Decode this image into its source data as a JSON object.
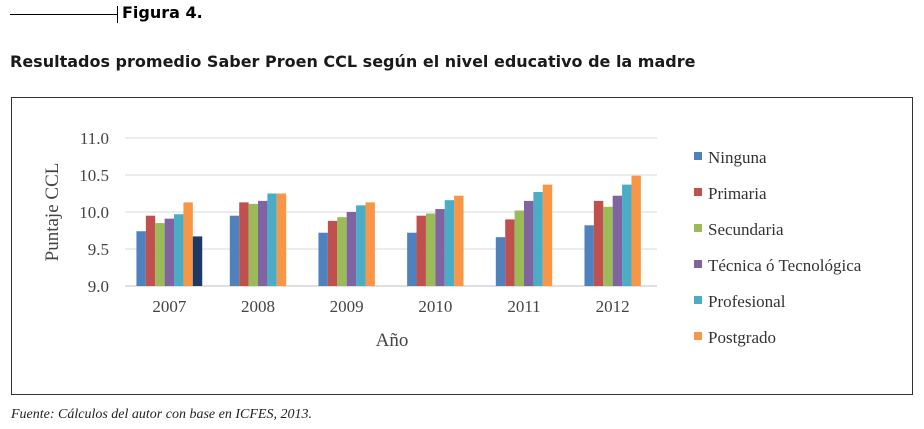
{
  "header": {
    "figure_label": "Figura 4.",
    "title": "Resultados promedio Saber Proen CCL según el nivel educativo de la madre"
  },
  "footer": {
    "source": "Fuente: Cálculos del autor con base en ICFES, 2013."
  },
  "chart_data": {
    "type": "bar",
    "title": "",
    "xlabel": "Año",
    "ylabel": "Puntaje CCL",
    "ylim": [
      9.0,
      11.0
    ],
    "yticks": [
      "9.0",
      "9.5",
      "10.0",
      "10.5",
      "11.0"
    ],
    "grid": "horizontal",
    "legend_position": "right",
    "categories": [
      "2007",
      "2008",
      "2009",
      "2010",
      "2011",
      "2012"
    ],
    "series": [
      {
        "name": "Ninguna",
        "color": "#4f81bd",
        "values": [
          9.74,
          9.95,
          9.72,
          9.72,
          9.66,
          9.82
        ]
      },
      {
        "name": "Primaria",
        "color": "#c0504d",
        "values": [
          9.95,
          10.13,
          9.88,
          9.95,
          9.9,
          10.15
        ]
      },
      {
        "name": "Secundaria",
        "color": "#9bbb59",
        "values": [
          9.85,
          10.11,
          9.93,
          9.98,
          10.02,
          10.07
        ]
      },
      {
        "name": "Técnica ó Tecnológica",
        "color": "#8064a2",
        "values": [
          9.91,
          10.15,
          10.0,
          10.04,
          10.15,
          10.22
        ]
      },
      {
        "name": "Profesional",
        "color": "#4bacc6",
        "values": [
          9.97,
          10.25,
          10.09,
          10.16,
          10.27,
          10.37
        ]
      },
      {
        "name": "Postgrado",
        "color": "#f79646",
        "values": [
          10.13,
          10.25,
          10.13,
          10.22,
          10.37,
          10.49
        ]
      }
    ],
    "extra_bars": [
      {
        "category": "2007",
        "color": "#1f3864",
        "value": 9.67
      }
    ]
  }
}
